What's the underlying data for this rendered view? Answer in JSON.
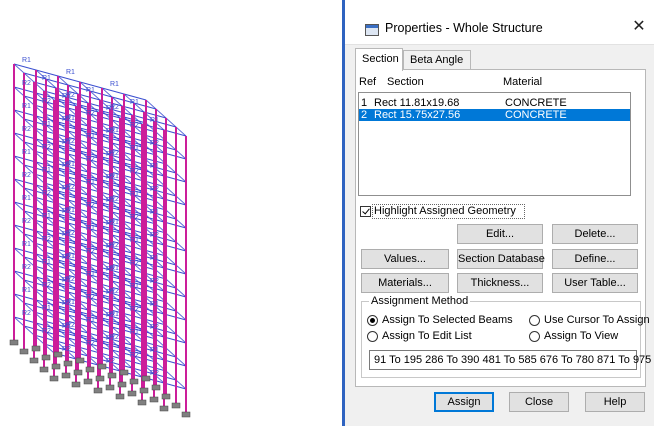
{
  "model": {
    "member_labels": [
      "R1",
      "R2"
    ],
    "colors": {
      "column": "#cc1e9a",
      "beam": "#3b4fd0",
      "support": "#808080"
    }
  },
  "dialog": {
    "title": "Properties - Whole Structure",
    "close_icon": "close-icon",
    "tabs": [
      "Section",
      "Beta Angle"
    ],
    "table": {
      "headers": {
        "ref": "Ref",
        "section": "Section",
        "material": "Material"
      },
      "rows": [
        {
          "ref": "1",
          "section": "Rect 11.81x19.68",
          "material": "CONCRETE",
          "selected": false
        },
        {
          "ref": "2",
          "section": "Rect 15.75x27.56",
          "material": "CONCRETE",
          "selected": true
        }
      ]
    },
    "highlight_label": "Highlight Assigned Geometry",
    "buttons": {
      "edit": "Edit...",
      "delete": "Delete...",
      "values": "Values...",
      "section_database": "Section Database",
      "define": "Define...",
      "materials": "Materials...",
      "thickness": "Thickness...",
      "user_table": "User Table..."
    },
    "assignment": {
      "legend": "Assignment Method",
      "selected_beams": "Assign To Selected Beams",
      "use_cursor": "Use Cursor To Assign",
      "edit_list": "Assign To Edit List",
      "view": "Assign To View",
      "list_value": "91 To 195 286 To 390 481 To 585 676 To 780 871 To 975"
    },
    "footer": {
      "assign": "Assign",
      "close": "Close",
      "help": "Help"
    },
    "accent_color": "#0078d7"
  }
}
